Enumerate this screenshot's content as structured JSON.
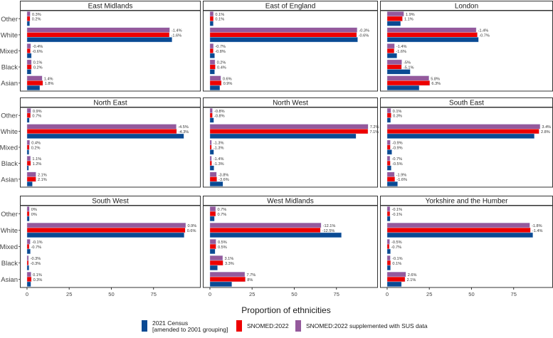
{
  "chart_data": {
    "type": "bar",
    "orientation": "horizontal",
    "xlabel": "Proportion of ethnicities",
    "ylabel": "",
    "xlim": [
      -4.2,
      102.5
    ],
    "xticks": [
      0,
      25,
      50,
      75
    ],
    "categories": [
      "Other",
      "White",
      "Mixed",
      "Black",
      "Asian"
    ],
    "legend": {
      "placement": "bottom",
      "entries": [
        {
          "key": "census",
          "lines": [
            "2021 Census",
            "[amended to 2001 grouping]"
          ],
          "color": "#0a4a93"
        },
        {
          "key": "snomed",
          "lines": [
            "SNOMED:2022"
          ],
          "color": "#ee0000"
        },
        {
          "key": "sus",
          "lines": [
            "SNOMED:2022 supplemented with SUS data"
          ],
          "color": "#94599c"
        }
      ]
    },
    "panels": [
      {
        "region": "East Midlands",
        "census": [
          1.6,
          86.0,
          2.6,
          2.5,
          7.6
        ],
        "snomed": [
          1.8,
          84.4,
          2.0,
          2.7,
          9.4
        ],
        "sus": [
          1.9,
          84.6,
          2.2,
          2.6,
          9.0
        ],
        "snomed_labels": [
          "0.2%",
          "-1.6%",
          "-0.6%",
          "0.2%",
          "1.8%"
        ],
        "sus_labels": [
          "0.3%",
          "-1.4%",
          "-0.4%",
          "0.1%",
          "1.4%"
        ]
      },
      {
        "region": "East of England",
        "census": [
          2.0,
          87.6,
          2.8,
          2.8,
          5.9
        ],
        "snomed": [
          2.1,
          87.0,
          2.0,
          3.2,
          6.8
        ],
        "sus": [
          2.1,
          87.3,
          2.1,
          3.0,
          6.5
        ],
        "snomed_labels": [
          "0.1%",
          "-0.6%",
          "-0.8%",
          "0.4%",
          "0.9%"
        ],
        "sus_labels": [
          "0.1%",
          "-0.3%",
          "-0.7%",
          "0.2%",
          "0.6%"
        ]
      },
      {
        "region": "London",
        "census": [
          8.0,
          54.2,
          5.8,
          13.7,
          19.0
        ],
        "snomed": [
          9.1,
          53.5,
          4.2,
          8.6,
          25.3
        ],
        "sus": [
          9.9,
          52.8,
          4.4,
          8.7,
          24.8
        ],
        "snomed_labels": [
          "1.1%",
          "-0.7%",
          "-1.6%",
          "-5.1%",
          "6.3%"
        ],
        "sus_labels": [
          "1.9%",
          "-1.4%",
          "-1.4%",
          "-5%",
          "5.8%"
        ]
      },
      {
        "region": "North East",
        "census": [
          1.4,
          93.0,
          1.2,
          1.0,
          3.2
        ],
        "snomed": [
          2.1,
          88.7,
          1.4,
          2.2,
          5.3
        ],
        "sus": [
          2.3,
          88.5,
          1.6,
          2.1,
          5.3
        ],
        "snomed_labels": [
          "0.7%",
          "-4.3%",
          "0.2%",
          "1.2%",
          "2.1%"
        ],
        "sus_labels": [
          "0.9%",
          "-4.5%",
          "0.4%",
          "1.1%",
          "2.1%"
        ]
      },
      {
        "region": "North West",
        "census": [
          2.3,
          86.6,
          2.3,
          2.4,
          7.7
        ],
        "snomed": [
          1.5,
          93.7,
          1.0,
          1.1,
          4.1
        ],
        "sus": [
          1.5,
          93.8,
          1.0,
          1.0,
          3.9
        ],
        "snomed_labels": [
          "-0.8%",
          "7.1%",
          "-1.3%",
          "-1.3%",
          "-3.6%"
        ],
        "sus_labels": [
          "-0.8%",
          "7.2%",
          "-1.3%",
          "-1.4%",
          "-3.8%"
        ]
      },
      {
        "region": "South East",
        "census": [
          2.1,
          87.3,
          2.8,
          2.4,
          6.2
        ],
        "snomed": [
          2.4,
          90.1,
          1.9,
          1.9,
          4.6
        ],
        "sus": [
          2.2,
          90.7,
          1.9,
          1.7,
          4.3
        ],
        "snomed_labels": [
          "0.3%",
          "2.8%",
          "-0.9%",
          "-0.5%",
          "-1.6%"
        ],
        "sus_labels": [
          "0.1%",
          "3.4%",
          "-0.9%",
          "-0.7%",
          "-1.9%"
        ]
      },
      {
        "region": "South West",
        "census": [
          1.4,
          93.2,
          2.0,
          1.2,
          2.3
        ],
        "snomed": [
          1.4,
          93.8,
          1.3,
          0.9,
          2.6
        ],
        "sus": [
          1.4,
          94.1,
          1.9,
          0.9,
          2.4
        ],
        "snomed_labels": [
          "0%",
          "0.6%",
          "-0.7%",
          "-0.3%",
          "0.3%"
        ],
        "sus_labels": [
          "0%",
          "0.9%",
          "-0.1%",
          "-0.3%",
          "0.1%"
        ]
      },
      {
        "region": "West Midlands",
        "census": [
          2.7,
          78.0,
          3.1,
          4.5,
          13.0
        ],
        "snomed": [
          3.4,
          65.5,
          3.6,
          7.8,
          21.0
        ],
        "sus": [
          3.4,
          65.9,
          3.6,
          7.6,
          20.7
        ],
        "snomed_labels": [
          "0.7%",
          "-12.5%",
          "0.5%",
          "3.3%",
          "8%"
        ],
        "sus_labels": [
          "0.7%",
          "-12.1%",
          "0.5%",
          "3.1%",
          "7.7%"
        ]
      },
      {
        "region": "Yorkshire and the Humber",
        "census": [
          1.8,
          86.4,
          2.0,
          2.0,
          8.5
        ],
        "snomed": [
          1.7,
          85.0,
          1.3,
          2.1,
          10.6
        ],
        "sus": [
          1.7,
          84.6,
          1.5,
          1.9,
          11.1
        ],
        "snomed_labels": [
          "-0.1%",
          "-1.4%",
          "-0.7%",
          "0.1%",
          "2.1%"
        ],
        "sus_labels": [
          "-0.1%",
          "-1.8%",
          "-0.5%",
          "-0.1%",
          "2.6%"
        ]
      }
    ]
  }
}
